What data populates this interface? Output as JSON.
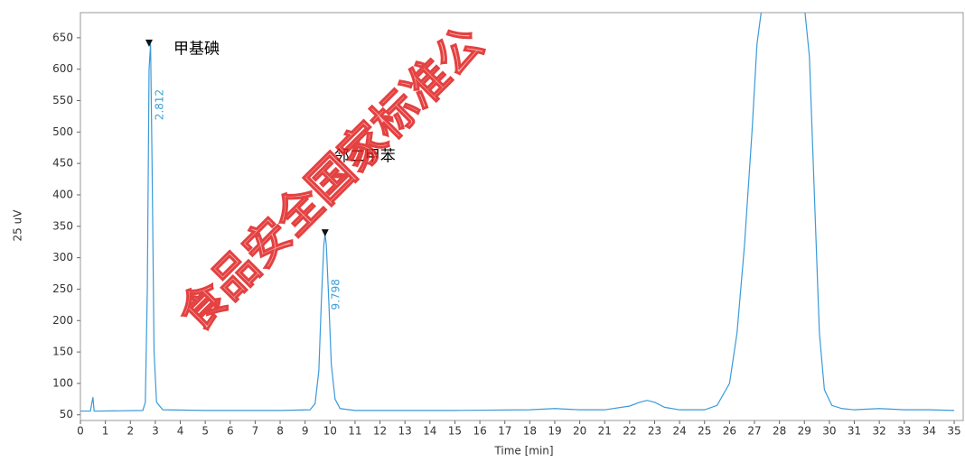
{
  "chart_data": {
    "type": "line",
    "x_label": "Time [min]",
    "y_label": "25 uV",
    "watermark": "食品安全国家标准公",
    "xlim": [
      0,
      35.36
    ],
    "ylim": [
      41,
      690
    ],
    "xticks": [
      0,
      1,
      2,
      3,
      4,
      5,
      6,
      7,
      8,
      9,
      10,
      11,
      12,
      13,
      14,
      15,
      16,
      17,
      18,
      19,
      20,
      21,
      22,
      23,
      24,
      25,
      26,
      27,
      28,
      29,
      30,
      31,
      32,
      33,
      34,
      35
    ],
    "yticks": [
      50,
      100,
      150,
      200,
      250,
      300,
      350,
      400,
      450,
      500,
      550,
      600,
      650
    ],
    "series": [
      {
        "color": "#3a9ad9",
        "x": [
          0,
          0.4,
          0.5,
          0.55,
          0.7,
          2.5,
          2.6,
          2.68,
          2.75,
          2.81,
          2.87,
          2.95,
          3.05,
          3.3,
          5,
          8,
          9.2,
          9.4,
          9.55,
          9.65,
          9.75,
          9.8,
          9.85,
          9.95,
          10.05,
          10.2,
          10.4,
          11,
          15,
          18,
          19,
          20,
          21,
          22,
          22.4,
          22.7,
          23,
          23.4,
          24,
          25,
          25.5,
          26,
          26.3,
          26.6,
          26.9,
          27.1,
          27.3,
          29.0,
          29.2,
          29.4,
          29.6,
          29.8,
          30.1,
          30.5,
          31,
          32,
          33,
          34,
          35
        ],
        "values": [
          56,
          56,
          78,
          56,
          56,
          57,
          70,
          250,
          600,
          640,
          450,
          150,
          70,
          58,
          57,
          57,
          58,
          68,
          120,
          230,
          320,
          338,
          320,
          230,
          130,
          75,
          60,
          57,
          57,
          58,
          60,
          58,
          58,
          64,
          70,
          73,
          70,
          62,
          58,
          58,
          65,
          100,
          180,
          320,
          500,
          640,
          700,
          700,
          620,
          400,
          180,
          90,
          65,
          60,
          58,
          60,
          58,
          58,
          57
        ]
      }
    ],
    "peaks": [
      {
        "x": 2.75,
        "y": 640,
        "label": "2.812",
        "name": "甲基碘"
      },
      {
        "x": 9.8,
        "y": 338,
        "label": "9.798",
        "name": "邻二甲苯"
      }
    ]
  }
}
